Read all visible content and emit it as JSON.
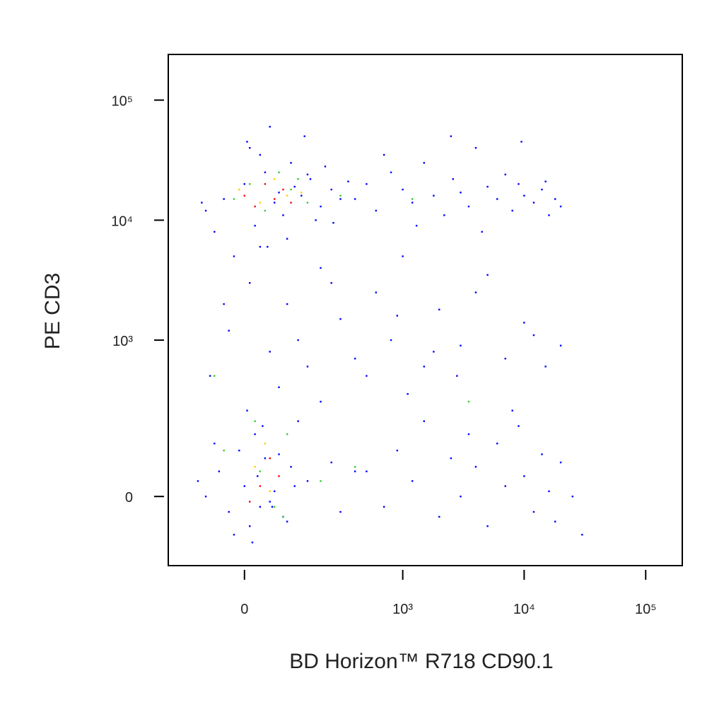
{
  "chart_data": {
    "type": "scatter",
    "x_label": "BD Horizon™ R718 CD90.1",
    "y_label": "PE CD3",
    "xscale": "biexponential",
    "yscale": "biexponential",
    "xlim": [
      -200,
      200000
    ],
    "ylim": [
      -175,
      240000
    ],
    "xticks": [
      0,
      {
        "value": 1000,
        "label": "10³"
      },
      {
        "value": 10000,
        "label": "10⁴"
      },
      {
        "value": 100000,
        "label": "10⁵"
      }
    ],
    "yticks": [
      0,
      {
        "value": 1000,
        "label": "10³"
      },
      {
        "value": 10000,
        "label": "10⁴"
      },
      {
        "value": 100000,
        "label": "10⁵"
      }
    ],
    "series": [
      {
        "color": "#0000ff",
        "x": [
          -80,
          -40,
          0,
          20,
          40,
          60,
          80,
          100,
          130,
          160,
          200,
          250,
          -60,
          10,
          50,
          90,
          140,
          180,
          220,
          300,
          -20,
          30,
          70,
          110,
          150,
          260,
          350,
          -90,
          5,
          45,
          400,
          500,
          600,
          800,
          1000,
          1200,
          1500,
          1800,
          2200,
          2600,
          3000,
          3500,
          4000,
          5000,
          6000,
          7000,
          8000,
          9000,
          10000,
          12000,
          14000,
          16000,
          18000,
          20000,
          700,
          1300,
          2500,
          4500,
          9500,
          15000,
          -80,
          -50,
          -30,
          -10,
          0,
          10,
          20,
          30,
          40,
          60,
          80,
          100,
          120,
          150,
          -60,
          -20,
          5,
          25,
          50,
          70,
          90,
          110,
          200,
          250,
          300,
          400,
          -100,
          15,
          35,
          55,
          500,
          700,
          900,
          1200,
          1500,
          2000,
          2500,
          3000,
          3500,
          4000,
          5000,
          6000,
          7000,
          8000,
          10000,
          12000,
          14000,
          16000,
          18000,
          20000,
          25000,
          30000,
          1100,
          2800,
          9000,
          -70,
          -30,
          10,
          50,
          90,
          150,
          200,
          300,
          400,
          600,
          800,
          1000,
          1500,
          2000,
          3000,
          5000,
          7000,
          10000,
          15000,
          20000,
          -40,
          30,
          70,
          120,
          250,
          500,
          900,
          1800,
          4000,
          12000
        ],
        "values": [
          12000,
          15000,
          20000,
          9000,
          25000,
          14000,
          11000,
          30000,
          16000,
          22000,
          13000,
          18000,
          8000,
          40000,
          60000,
          7000,
          50000,
          10000,
          28000,
          15000,
          5000,
          35000,
          17000,
          19000,
          24000,
          9500,
          21000,
          14000,
          45000,
          6000,
          15000,
          20000,
          12000,
          25000,
          18000,
          14000,
          30000,
          16000,
          11000,
          22000,
          17000,
          13000,
          40000,
          19000,
          15000,
          24000,
          12000,
          20000,
          16000,
          14000,
          18000,
          11000,
          15000,
          13000,
          35000,
          9000,
          50000,
          8000,
          45000,
          21000,
          0,
          50,
          -30,
          100,
          20,
          -60,
          150,
          -20,
          80,
          10,
          -40,
          60,
          200,
          30,
          120,
          -80,
          250,
          40,
          -10,
          90,
          -50,
          20,
          300,
          70,
          -30,
          50,
          30,
          -100,
          180,
          -20,
          50,
          -20,
          100,
          30,
          200,
          -40,
          80,
          0,
          150,
          60,
          -60,
          120,
          20,
          250,
          40,
          -30,
          90,
          10,
          -50,
          70,
          0,
          -80,
          350,
          500,
          180,
          500,
          1200,
          3000,
          800,
          2000,
          600,
          4000,
          1500,
          700,
          2500,
          1000,
          5000,
          600,
          1800,
          900,
          3500,
          700,
          1400,
          600,
          900,
          2000,
          6000,
          400,
          1000,
          3000,
          500,
          1600,
          800,
          2500,
          1100
        ]
      },
      {
        "color": "#33cc33",
        "x": [
          -20,
          10,
          40,
          70,
          100,
          150,
          30,
          60,
          -40,
          200,
          20,
          50,
          90,
          300,
          1200,
          3500,
          -60,
          120,
          400,
          80
        ],
        "values": [
          15000,
          20000,
          12000,
          25000,
          18000,
          14000,
          50,
          -20,
          100,
          30,
          200,
          80,
          150,
          16000,
          15000,
          300,
          500,
          22000,
          60,
          -40
        ]
      },
      {
        "color": "#ffcc00",
        "x": [
          -10,
          30,
          60,
          90,
          20,
          50,
          130,
          40
        ],
        "values": [
          18000,
          14000,
          22000,
          16000,
          60,
          10,
          17000,
          120
        ]
      },
      {
        "color": "#ff0000",
        "x": [
          0,
          20,
          40,
          60,
          80,
          30,
          50,
          10,
          100,
          70
        ],
        "values": [
          16000,
          13000,
          20000,
          15000,
          18000,
          20,
          80,
          -10,
          14000,
          40
        ]
      }
    ]
  }
}
